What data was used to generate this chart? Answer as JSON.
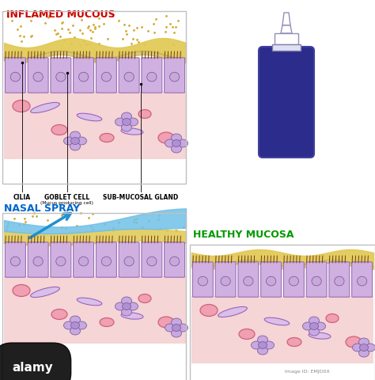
{
  "title_inflamed": "INFLAMED MUCOUS",
  "title_nasal": "NASAL SPRAY",
  "title_healthy": "HEALTHY MUCOSA",
  "label_cilia": "CILIA",
  "label_goblet": "GOBLET CELL",
  "label_goblet_sub": "(Mucus producing cell)",
  "label_submucosal": "SUB-MUCOSAL GLAND",
  "color_title_red": "#cc0000",
  "color_title_green": "#009900",
  "color_title_blue": "#0066cc",
  "color_bg": "#ffffff",
  "color_mucus_yellow": "#e0c850",
  "color_mucus_dark": "#c8b040",
  "color_cell_light": "#d0b0e0",
  "color_cell_edge": "#9060b0",
  "color_nucleus": "#c8a8d8",
  "color_nucleus_edge": "#7050a0",
  "color_tissue_pink": "#f5d5d5",
  "color_pink_cell": "#f0a0b0",
  "color_pink_edge": "#d06080",
  "color_purple_cell": "#d8c0e8",
  "color_purple_edge": "#a060c0",
  "color_gland_cell": "#c8a8e0",
  "color_gland_edge": "#8060a0",
  "color_cilia_brown": "#704010",
  "color_spray_blue": "#70c0e8",
  "color_arrow_blue": "#2090d0",
  "color_dot_gold": "#d4b040",
  "color_bottle_dark": "#2c2c8c",
  "color_bottle_outline": "#4040a0",
  "color_border": "#c0c0c0",
  "watermark_text": "alamy",
  "image_id": "EMJD0X"
}
